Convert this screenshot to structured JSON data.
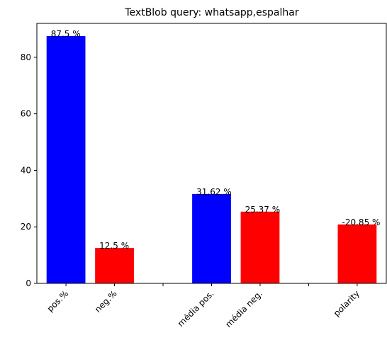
{
  "chart_data": {
    "type": "bar",
    "title": "TextBlob query: whatsapp,espalhar",
    "xlabel": "",
    "ylabel": "",
    "ylim": [
      0,
      92
    ],
    "yticks": [
      0,
      20,
      40,
      60,
      80
    ],
    "grid": false,
    "x_positions": [
      1,
      2,
      3,
      4,
      5,
      6,
      7
    ],
    "categories": [
      "pos.%",
      "neg.%",
      "",
      "média pos.",
      "média neg.",
      "",
      "polarity"
    ],
    "bars": [
      {
        "category": "pos.%",
        "value": 87.5,
        "label": "87.5 %",
        "color": "#0000ff"
      },
      {
        "category": "neg.%",
        "value": 12.5,
        "label": "12.5 %",
        "color": "#ff0000"
      },
      {
        "category": "média pos.",
        "value": 31.62,
        "label": "31.62 %",
        "color": "#0000ff"
      },
      {
        "category": "média neg.",
        "value": 25.37,
        "label": "25.37 %",
        "color": "#ff0000"
      },
      {
        "category": "polarity",
        "value": 20.85,
        "label": "-20.85 %",
        "color": "#ff0000"
      }
    ]
  }
}
